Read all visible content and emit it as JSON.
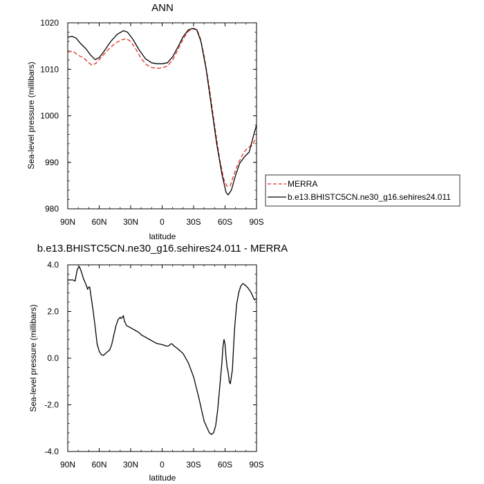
{
  "chart_data": [
    {
      "type": "line",
      "title": "ANN",
      "xlabel": "latitude",
      "ylabel": "Sea-level pressure (millibars)",
      "xlim": [
        90,
        -90
      ],
      "ylim": [
        980,
        1020
      ],
      "x_ticks": [
        "90N",
        "60N",
        "30N",
        "0",
        "30S",
        "60S",
        "90S"
      ],
      "y_ticks": [
        "980",
        "990",
        "1000",
        "1010",
        "1020"
      ],
      "legend_position": "right",
      "series": [
        {
          "name": "MERRA",
          "color": "#e0301e",
          "dash": "dashed",
          "points": [
            [
              90,
              1013.7
            ],
            [
              85,
              1013.9
            ],
            [
              80,
              1013
            ],
            [
              75,
              1012.5
            ],
            [
              70,
              1011.4
            ],
            [
              67,
              1010.9
            ],
            [
              63,
              1011.3
            ],
            [
              58,
              1012.6
            ],
            [
              52,
              1014.1
            ],
            [
              45,
              1015.6
            ],
            [
              38,
              1016.4
            ],
            [
              34,
              1016.6
            ],
            [
              30,
              1016
            ],
            [
              25,
              1014.3
            ],
            [
              20,
              1012.3
            ],
            [
              15,
              1011
            ],
            [
              10,
              1010.4
            ],
            [
              5,
              1010.2
            ],
            [
              0,
              1010.3
            ],
            [
              -5,
              1010.7
            ],
            [
              -10,
              1012
            ],
            [
              -15,
              1014.2
            ],
            [
              -20,
              1016.5
            ],
            [
              -25,
              1018.2
            ],
            [
              -30,
              1018.8
            ],
            [
              -33,
              1018.6
            ],
            [
              -36,
              1017
            ],
            [
              -40,
              1013
            ],
            [
              -45,
              1006
            ],
            [
              -50,
              998
            ],
            [
              -55,
              990.5
            ],
            [
              -59,
              986.2
            ],
            [
              -62,
              984.8
            ],
            [
              -65,
              985
            ],
            [
              -68,
              987
            ],
            [
              -72,
              989.5
            ],
            [
              -78,
              992.2
            ],
            [
              -82,
              993.2
            ],
            [
              -86,
              993.6
            ],
            [
              -90,
              995.5
            ]
          ]
        },
        {
          "name": "b.e13.BHISTC5CN.ne30_g16.sehires24.011",
          "color": "#000000",
          "dash": "solid",
          "points": [
            [
              90,
              1016.9
            ],
            [
              86,
              1017.1
            ],
            [
              82,
              1016.7
            ],
            [
              78,
              1015.6
            ],
            [
              73,
              1014.5
            ],
            [
              68,
              1013
            ],
            [
              64,
              1012.1
            ],
            [
              60,
              1012.5
            ],
            [
              55,
              1014
            ],
            [
              49,
              1016
            ],
            [
              43,
              1017.5
            ],
            [
              37,
              1018.3
            ],
            [
              33,
              1018
            ],
            [
              28,
              1016.5
            ],
            [
              22,
              1014.2
            ],
            [
              16,
              1012.3
            ],
            [
              10,
              1011.4
            ],
            [
              5,
              1011.2
            ],
            [
              0,
              1011.2
            ],
            [
              -5,
              1011.4
            ],
            [
              -10,
              1012.7
            ],
            [
              -15,
              1014.8
            ],
            [
              -20,
              1017
            ],
            [
              -25,
              1018.5
            ],
            [
              -29,
              1018.8
            ],
            [
              -33,
              1018.5
            ],
            [
              -37,
              1016
            ],
            [
              -42,
              1010
            ],
            [
              -47,
              1002
            ],
            [
              -52,
              994
            ],
            [
              -57,
              987.5
            ],
            [
              -61,
              983.5
            ],
            [
              -63,
              983
            ],
            [
              -66,
              984
            ],
            [
              -70,
              987.2
            ],
            [
              -74,
              989.8
            ],
            [
              -79,
              991.3
            ],
            [
              -83,
              992.2
            ],
            [
              -87,
              995.6
            ],
            [
              -90,
              998
            ]
          ]
        }
      ]
    },
    {
      "type": "line",
      "title": "b.e13.BHISTC5CN.ne30_g16.sehires24.011 - MERRA",
      "xlabel": "latitude",
      "ylabel": "Sea-level pressure (millibars)",
      "xlim": [
        90,
        -90
      ],
      "ylim": [
        -4,
        4
      ],
      "x_ticks": [
        "90N",
        "60N",
        "30N",
        "0",
        "30S",
        "60S",
        "90S"
      ],
      "y_ticks": [
        "-4.0",
        "-2.0",
        "0.0",
        "2.0",
        "4.0"
      ],
      "series": [
        {
          "name": "",
          "color": "#000000",
          "dash": "solid",
          "points": [
            [
              90,
              3.35
            ],
            [
              85,
              3.35
            ],
            [
              83,
              3.3
            ],
            [
              81,
              3.8
            ],
            [
              79,
              3.93
            ],
            [
              77,
              3.7
            ],
            [
              75,
              3.4
            ],
            [
              73,
              3.2
            ],
            [
              71,
              2.95
            ],
            [
              70,
              3.05
            ],
            [
              69,
              3.05
            ],
            [
              68,
              2.7
            ],
            [
              66,
              2.1
            ],
            [
              64,
              1.4
            ],
            [
              62,
              0.6
            ],
            [
              60,
              0.3
            ],
            [
              58,
              0.15
            ],
            [
              56,
              0.12
            ],
            [
              54,
              0.2
            ],
            [
              52,
              0.28
            ],
            [
              50,
              0.35
            ],
            [
              48,
              0.6
            ],
            [
              46,
              1.0
            ],
            [
              44,
              1.4
            ],
            [
              42,
              1.65
            ],
            [
              40,
              1.75
            ],
            [
              39,
              1.7
            ],
            [
              38,
              1.75
            ],
            [
              37,
              1.82
            ],
            [
              36,
              1.6
            ],
            [
              34,
              1.4
            ],
            [
              32,
              1.35
            ],
            [
              30,
              1.3
            ],
            [
              28,
              1.25
            ],
            [
              26,
              1.2
            ],
            [
              24,
              1.15
            ],
            [
              22,
              1.1
            ],
            [
              20,
              1.0
            ],
            [
              18,
              0.95
            ],
            [
              16,
              0.9
            ],
            [
              14,
              0.85
            ],
            [
              12,
              0.8
            ],
            [
              10,
              0.75
            ],
            [
              8,
              0.7
            ],
            [
              6,
              0.65
            ],
            [
              4,
              0.62
            ],
            [
              2,
              0.6
            ],
            [
              0,
              0.58
            ],
            [
              -2,
              0.55
            ],
            [
              -4,
              0.52
            ],
            [
              -6,
              0.52
            ],
            [
              -8,
              0.6
            ],
            [
              -9,
              0.62
            ],
            [
              -10,
              0.58
            ],
            [
              -12,
              0.5
            ],
            [
              -15,
              0.4
            ],
            [
              -20,
              0.2
            ],
            [
              -25,
              -0.2
            ],
            [
              -30,
              -0.8
            ],
            [
              -35,
              -1.7
            ],
            [
              -40,
              -2.7
            ],
            [
              -45,
              -3.2
            ],
            [
              -47,
              -3.27
            ],
            [
              -49,
              -3.2
            ],
            [
              -51,
              -2.9
            ],
            [
              -53,
              -2.2
            ],
            [
              -55,
              -1.2
            ],
            [
              -57,
              -0.2
            ],
            [
              -58,
              0.5
            ],
            [
              -59,
              0.8
            ],
            [
              -60,
              0.6
            ],
            [
              -61,
              0.0
            ],
            [
              -62,
              -0.4
            ],
            [
              -63,
              -0.6
            ],
            [
              -64,
              -1.0
            ],
            [
              -65,
              -1.1
            ],
            [
              -67,
              -0.5
            ],
            [
              -69,
              1.2
            ],
            [
              -71,
              2.3
            ],
            [
              -73,
              2.8
            ],
            [
              -75,
              3.1
            ],
            [
              -77,
              3.2
            ],
            [
              -80,
              3.1
            ],
            [
              -82,
              3.0
            ],
            [
              -85,
              2.8
            ],
            [
              -87,
              2.6
            ],
            [
              -88,
              2.5
            ],
            [
              -90,
              2.55
            ]
          ]
        }
      ]
    }
  ]
}
